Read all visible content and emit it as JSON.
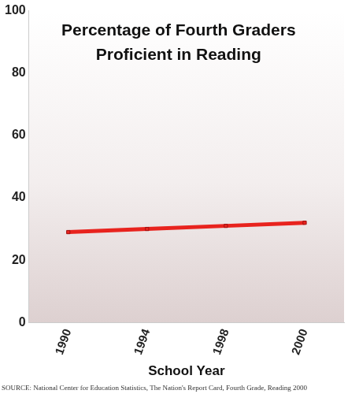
{
  "chart_data": {
    "type": "line",
    "title": [
      "Percentage of Fourth Graders",
      "Proficient in Reading"
    ],
    "x_label": "School Year",
    "source": "SOURCE: National Center for Education Statistics, The Nation's Report Card, Fourth Grade, Reading 2000",
    "categories": [
      "1990",
      "1994",
      "1998",
      "2000"
    ],
    "values": [
      29,
      30,
      31,
      32
    ],
    "color": "#e8231e",
    "marker": "square",
    "ylim": [
      0,
      100
    ],
    "yticks": [
      0,
      20,
      40,
      60,
      80,
      100
    ],
    "grid": false
  }
}
